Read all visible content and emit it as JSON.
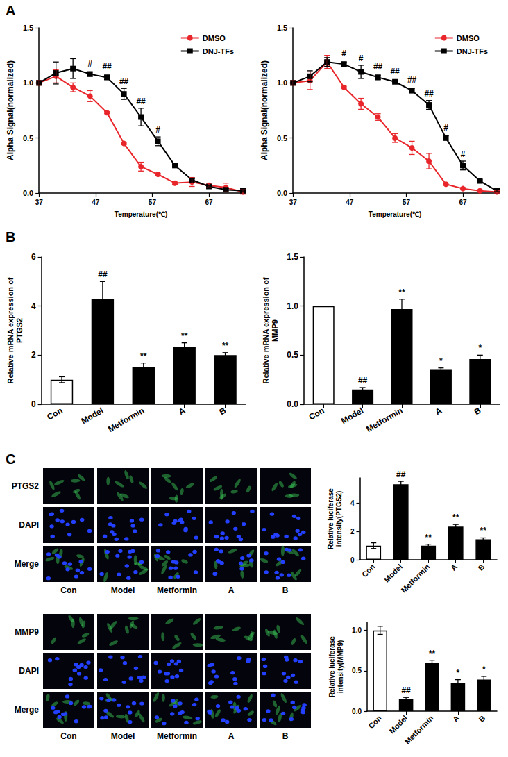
{
  "panels": [
    "A",
    "B",
    "C"
  ],
  "chart_data": [
    {
      "type": "line",
      "x_label": "Temperature(℃)",
      "y_label": "Alpha Signal(normalized)",
      "x": [
        37,
        40,
        43,
        46,
        49,
        52,
        55,
        58,
        61,
        64,
        67,
        70,
        73
      ],
      "xlim": [
        37,
        73
      ],
      "xticks": [
        37,
        47,
        57,
        67
      ],
      "ylim": [
        0,
        1.5
      ],
      "yticks": [
        {
          "value": 0,
          "label": "0.0"
        },
        {
          "value": 0.5,
          "label": "0.5"
        },
        {
          "value": 1,
          "label": "1.0"
        },
        {
          "value": 1.5,
          "label": "1.5"
        }
      ],
      "grid": false,
      "legend": "upper right",
      "series": [
        {
          "name": "DMSO",
          "color": "#e8262b",
          "marker": "circle",
          "values": [
            1.0,
            1.06,
            0.96,
            0.88,
            0.73,
            0.45,
            0.24,
            0.17,
            0.09,
            0.1,
            0.07,
            0.05,
            0.01
          ],
          "errors": [
            0.02,
            0.06,
            0.04,
            0.05,
            0.01,
            0.01,
            0.04,
            0.01,
            0.01,
            0.04,
            0.02,
            0.04,
            0.02
          ]
        },
        {
          "name": "DNJ-TFs",
          "color": "#000000",
          "marker": "square",
          "values": [
            1.0,
            1.09,
            1.13,
            1.08,
            1.05,
            0.9,
            0.69,
            0.47,
            0.25,
            0.12,
            0.06,
            0.03,
            0.02
          ],
          "errors": [
            0.02,
            0.1,
            0.09,
            0.02,
            0.02,
            0.05,
            0.08,
            0.04,
            0.01,
            0.01,
            0.01,
            0.01,
            0.01
          ],
          "significance": [
            null,
            null,
            null,
            "#",
            "##",
            "##",
            "##",
            "#",
            null,
            null,
            null,
            null,
            null
          ]
        }
      ]
    },
    {
      "type": "line",
      "x_label": "Temperature(℃)",
      "y_label": "Alpha Signal(normalized)",
      "x": [
        37,
        40,
        43,
        46,
        49,
        52,
        55,
        58,
        61,
        64,
        67,
        70,
        73
      ],
      "xlim": [
        37,
        73
      ],
      "xticks": [
        37,
        47,
        57,
        67
      ],
      "ylim": [
        0,
        1.5
      ],
      "yticks": [
        {
          "value": 0,
          "label": "0.0"
        },
        {
          "value": 0.5,
          "label": "0.5"
        },
        {
          "value": 1,
          "label": "1.0"
        },
        {
          "value": 1.5,
          "label": "1.5"
        }
      ],
      "grid": false,
      "legend": "upper right",
      "series": [
        {
          "name": "DMSO",
          "color": "#e8262b",
          "marker": "circle",
          "values": [
            1.0,
            1.02,
            1.19,
            0.96,
            0.81,
            0.69,
            0.5,
            0.41,
            0.29,
            0.08,
            0.04,
            0.02,
            0.01
          ],
          "errors": [
            0.02,
            0.08,
            0.06,
            0.01,
            0.05,
            0.03,
            0.04,
            0.06,
            0.07,
            0.01,
            0.01,
            0.01,
            0.01
          ]
        },
        {
          "name": "DNJ-TFs",
          "color": "#000000",
          "marker": "square",
          "values": [
            1.0,
            1.06,
            1.19,
            1.17,
            1.1,
            1.05,
            1.01,
            0.93,
            0.8,
            0.5,
            0.25,
            0.11,
            0.02
          ],
          "errors": [
            0.02,
            0.05,
            0.04,
            0.02,
            0.06,
            0.02,
            0.01,
            0.02,
            0.04,
            0.02,
            0.04,
            0.01,
            0.01
          ],
          "significance": [
            null,
            null,
            null,
            "#",
            "#",
            "##",
            "##",
            "##",
            "##",
            "#",
            "#",
            null,
            null
          ]
        }
      ]
    },
    {
      "type": "bar",
      "y_label": "Relative mRNA expression of PTGS2",
      "categories": [
        "Con",
        "Model",
        "Metformin",
        "A",
        "B"
      ],
      "values": [
        1.0,
        4.3,
        1.5,
        2.35,
        2.0
      ],
      "errors": [
        0.12,
        0.7,
        0.18,
        0.15,
        0.1
      ],
      "significance": [
        null,
        "##",
        "**",
        "**",
        "**"
      ],
      "colors": [
        "#ffffff",
        "#000000",
        "#000000",
        "#000000",
        "#000000"
      ],
      "ylim": [
        0,
        6
      ],
      "yticks": [
        0,
        2,
        4,
        6
      ],
      "grid": false
    },
    {
      "type": "bar",
      "y_label": "Relative mRNA expression of MMP9",
      "categories": [
        "Con",
        "Model",
        "Metformin",
        "A",
        "B"
      ],
      "values": [
        1.0,
        0.15,
        0.97,
        0.35,
        0.46
      ],
      "errors": [
        null,
        0.02,
        0.1,
        0.02,
        0.04
      ],
      "significance": [
        null,
        "##",
        "**",
        "*",
        "*"
      ],
      "colors": [
        "#ffffff",
        "#000000",
        "#000000",
        "#000000",
        "#000000"
      ],
      "ylim": [
        0,
        1.5
      ],
      "yticks": [
        {
          "value": 0,
          "label": "0.0"
        },
        {
          "value": 0.5,
          "label": "0.5"
        },
        {
          "value": 1,
          "label": "1.0"
        },
        {
          "value": 1.5,
          "label": "1.5"
        }
      ],
      "grid": false
    },
    {
      "type": "bar",
      "y_label": "Relative luciferase intensity(PTGS2)",
      "categories": [
        "Con",
        "Model",
        "Metformin",
        "A",
        "B"
      ],
      "values": [
        1.0,
        5.35,
        1.0,
        2.35,
        1.45
      ],
      "errors": [
        0.2,
        0.2,
        0.1,
        0.15,
        0.1
      ],
      "significance": [
        null,
        "##",
        "**",
        "**",
        "**"
      ],
      "colors": [
        "#ffffff",
        "#000000",
        "#000000",
        "#000000",
        "#000000"
      ],
      "ylim": [
        0,
        5.8
      ],
      "yticks": [
        0,
        2,
        4
      ],
      "grid": false
    },
    {
      "type": "bar",
      "y_label": "Relative luciferase intensity(MMP9)",
      "categories": [
        "Con",
        "Model",
        "Metformin",
        "A",
        "B"
      ],
      "values": [
        1.0,
        0.15,
        0.6,
        0.35,
        0.39
      ],
      "errors": [
        0.05,
        0.02,
        0.03,
        0.04,
        0.04
      ],
      "significance": [
        null,
        "##",
        "**",
        "*",
        "*"
      ],
      "colors": [
        "#ffffff",
        "#000000",
        "#000000",
        "#000000",
        "#000000"
      ],
      "ylim": [
        0,
        1.1
      ],
      "yticks": [
        {
          "value": 0,
          "label": "0.0"
        },
        {
          "value": 0.5,
          "label": "0.5"
        },
        {
          "value": 1,
          "label": "1.0"
        }
      ],
      "grid": false
    }
  ],
  "image_grids": [
    {
      "rows": [
        "PTGS2",
        "DAPI",
        "Merge"
      ],
      "columns": [
        "Con",
        "Model",
        "Metformin",
        "A",
        "B"
      ]
    },
    {
      "rows": [
        "MMP9",
        "DAPI",
        "Merge"
      ],
      "columns": [
        "Con",
        "Model",
        "Metformin",
        "A",
        "B"
      ]
    }
  ]
}
